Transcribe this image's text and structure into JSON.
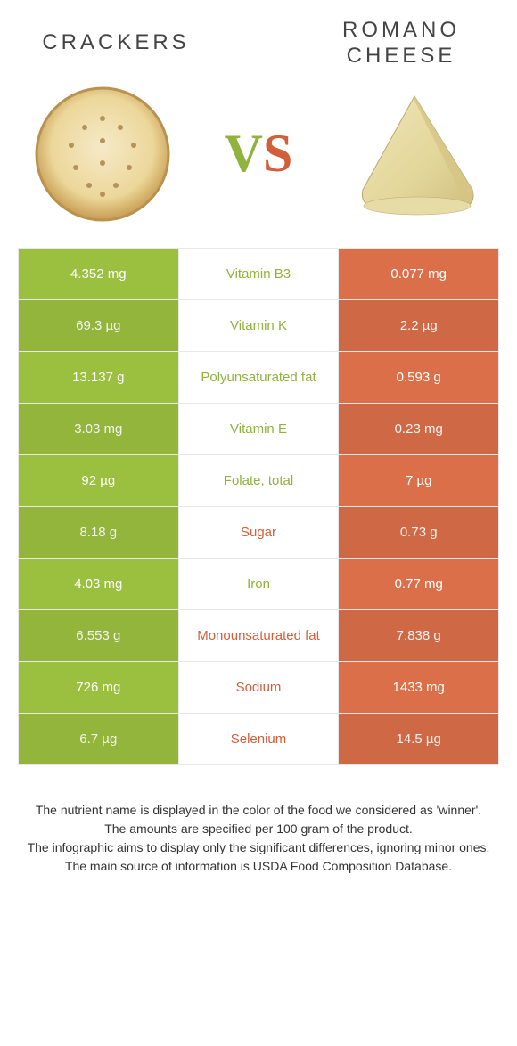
{
  "header": {
    "left": "Crackers",
    "right": "Romano Cheese"
  },
  "vs": {
    "v": "V",
    "s": "S"
  },
  "colors": {
    "left_bg": "#9bbf3f",
    "right_bg": "#da6f49",
    "left_text": "#8fb33c",
    "right_text": "#d35e3a",
    "row_border": "#e8e8e8"
  },
  "rows": [
    {
      "left": "4.352 mg",
      "nutrient": "Vitamin B3",
      "right": "0.077 mg",
      "winner": "left"
    },
    {
      "left": "69.3 µg",
      "nutrient": "Vitamin K",
      "right": "2.2 µg",
      "winner": "left"
    },
    {
      "left": "13.137 g",
      "nutrient": "Polyunsaturated fat",
      "right": "0.593 g",
      "winner": "left"
    },
    {
      "left": "3.03 mg",
      "nutrient": "Vitamin E",
      "right": "0.23 mg",
      "winner": "left"
    },
    {
      "left": "92 µg",
      "nutrient": "Folate, total",
      "right": "7 µg",
      "winner": "left"
    },
    {
      "left": "8.18 g",
      "nutrient": "Sugar",
      "right": "0.73 g",
      "winner": "right"
    },
    {
      "left": "4.03 mg",
      "nutrient": "Iron",
      "right": "0.77 mg",
      "winner": "left"
    },
    {
      "left": "6.553 g",
      "nutrient": "Monounsaturated fat",
      "right": "7.838 g",
      "winner": "right"
    },
    {
      "left": "726 mg",
      "nutrient": "Sodium",
      "right": "1433 mg",
      "winner": "right"
    },
    {
      "left": "6.7 µg",
      "nutrient": "Selenium",
      "right": "14.5 µg",
      "winner": "right"
    }
  ],
  "footnotes": [
    "The nutrient name is displayed in the color of the food we considered as 'winner'.",
    "The amounts are specified per 100 gram of the product.",
    "The infographic aims to display only the significant differences, ignoring minor ones.",
    "The main source of information is USDA Food Composition Database."
  ]
}
